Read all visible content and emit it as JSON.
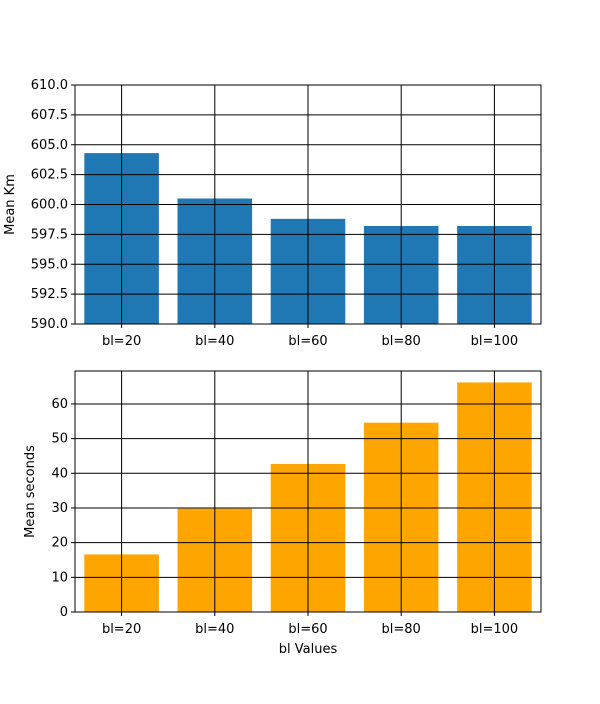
{
  "chart_data": [
    {
      "type": "bar",
      "categories": [
        "bl=20",
        "bl=40",
        "bl=60",
        "bl=80",
        "bl=100"
      ],
      "values": [
        604.3,
        600.5,
        598.8,
        598.2,
        598.2
      ],
      "color": "#1f77b4",
      "xlabel": "",
      "ylabel": "Mean Km",
      "ylim": [
        590,
        610
      ],
      "yticks": [
        590,
        592.5,
        595,
        597.5,
        600,
        602.5,
        605,
        607.5,
        610
      ],
      "ytick_labels": [
        "590.0",
        "592.5",
        "595.0",
        "597.5",
        "600.0",
        "602.5",
        "605.0",
        "607.5",
        "610.0"
      ],
      "grid": true
    },
    {
      "type": "bar",
      "categories": [
        "bl=20",
        "bl=40",
        "bl=60",
        "bl=80",
        "bl=100"
      ],
      "values": [
        16.6,
        29.8,
        42.7,
        54.6,
        66.2
      ],
      "color": "#ffa500",
      "xlabel": "bl Values",
      "ylabel": "Mean seconds",
      "ylim": [
        0,
        69.5
      ],
      "yticks": [
        0,
        10,
        20,
        30,
        40,
        50,
        60
      ],
      "ytick_labels": [
        "0",
        "10",
        "20",
        "30",
        "40",
        "50",
        "60"
      ],
      "grid": true
    }
  ]
}
